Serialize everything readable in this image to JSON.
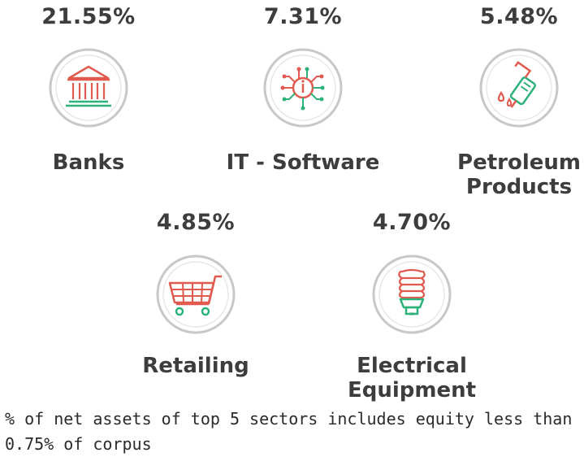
{
  "chart_data": {
    "type": "table",
    "categories": [
      "Banks",
      "IT - Software",
      "Petroleum Products",
      "Retailing",
      "Electrical Equipment"
    ],
    "values": [
      21.55,
      7.31,
      5.48,
      4.85,
      4.7
    ],
    "value_labels": [
      "21.55%",
      "7.31%",
      "5.48%",
      "4.85%",
      "4.70%"
    ],
    "icons": [
      "bank-building-icon",
      "microchip-icon",
      "fuel-nozzle-icon",
      "shopping-cart-icon",
      "cfl-bulb-icon"
    ],
    "colors": {
      "primary": "#e05a4f",
      "accent": "#2db37a",
      "ring": "#bdbdbd"
    }
  },
  "sectors": [
    {
      "pct": "21.55%",
      "label": "Banks"
    },
    {
      "pct": "7.31%",
      "label": "IT - Software"
    },
    {
      "pct": "5.48%",
      "label_line1": "Petroleum",
      "label_line2": "Products"
    },
    {
      "pct": "4.85%",
      "label": "Retailing"
    },
    {
      "pct": "4.70%",
      "label_line1": "Electrical",
      "label_line2": "Equipment"
    }
  ],
  "footnote": "% of net assets of top 5 sectors includes equity less than 0.75% of corpus"
}
